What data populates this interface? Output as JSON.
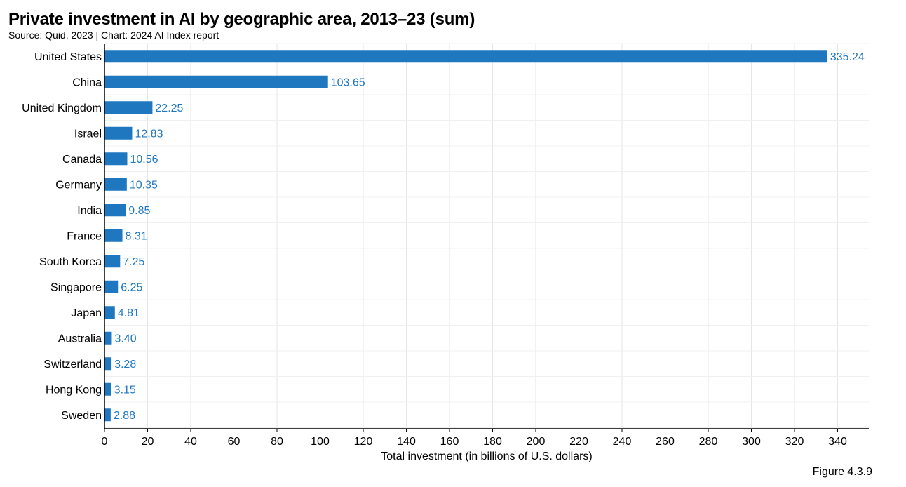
{
  "header": {
    "title": "Private investment in AI by geographic area, 2013–23 (sum)",
    "subtitle": "Source: Quid, 2023 | Chart: 2024 AI Index report"
  },
  "footer": {
    "figure_label": "Figure 4.3.9"
  },
  "colors": {
    "bar": "#1f77c0",
    "label": "#1f77c0",
    "grid": "#e6e6e6",
    "axis": "#000000"
  },
  "chart_data": {
    "type": "bar",
    "orientation": "horizontal",
    "title": "Private investment in AI by geographic area, 2013–23 (sum)",
    "xlabel": "Total investment (in billions of U.S. dollars)",
    "ylabel": "",
    "xlim": [
      0,
      350
    ],
    "xticks": [
      0,
      20,
      40,
      60,
      80,
      100,
      120,
      140,
      160,
      180,
      200,
      220,
      240,
      260,
      280,
      300,
      320,
      340
    ],
    "grid": true,
    "categories": [
      "United States",
      "China",
      "United Kingdom",
      "Israel",
      "Canada",
      "Germany",
      "India",
      "France",
      "South Korea",
      "Singapore",
      "Japan",
      "Australia",
      "Switzerland",
      "Hong Kong",
      "Sweden"
    ],
    "values": [
      335.24,
      103.65,
      22.25,
      12.83,
      10.56,
      10.35,
      9.85,
      8.31,
      7.25,
      6.25,
      4.81,
      3.4,
      3.28,
      3.15,
      2.88
    ],
    "value_labels": [
      "335.24",
      "103.65",
      "22.25",
      "12.83",
      "10.56",
      "10.35",
      "9.85",
      "8.31",
      "7.25",
      "6.25",
      "4.81",
      "3.40",
      "3.28",
      "3.15",
      "2.88"
    ]
  }
}
